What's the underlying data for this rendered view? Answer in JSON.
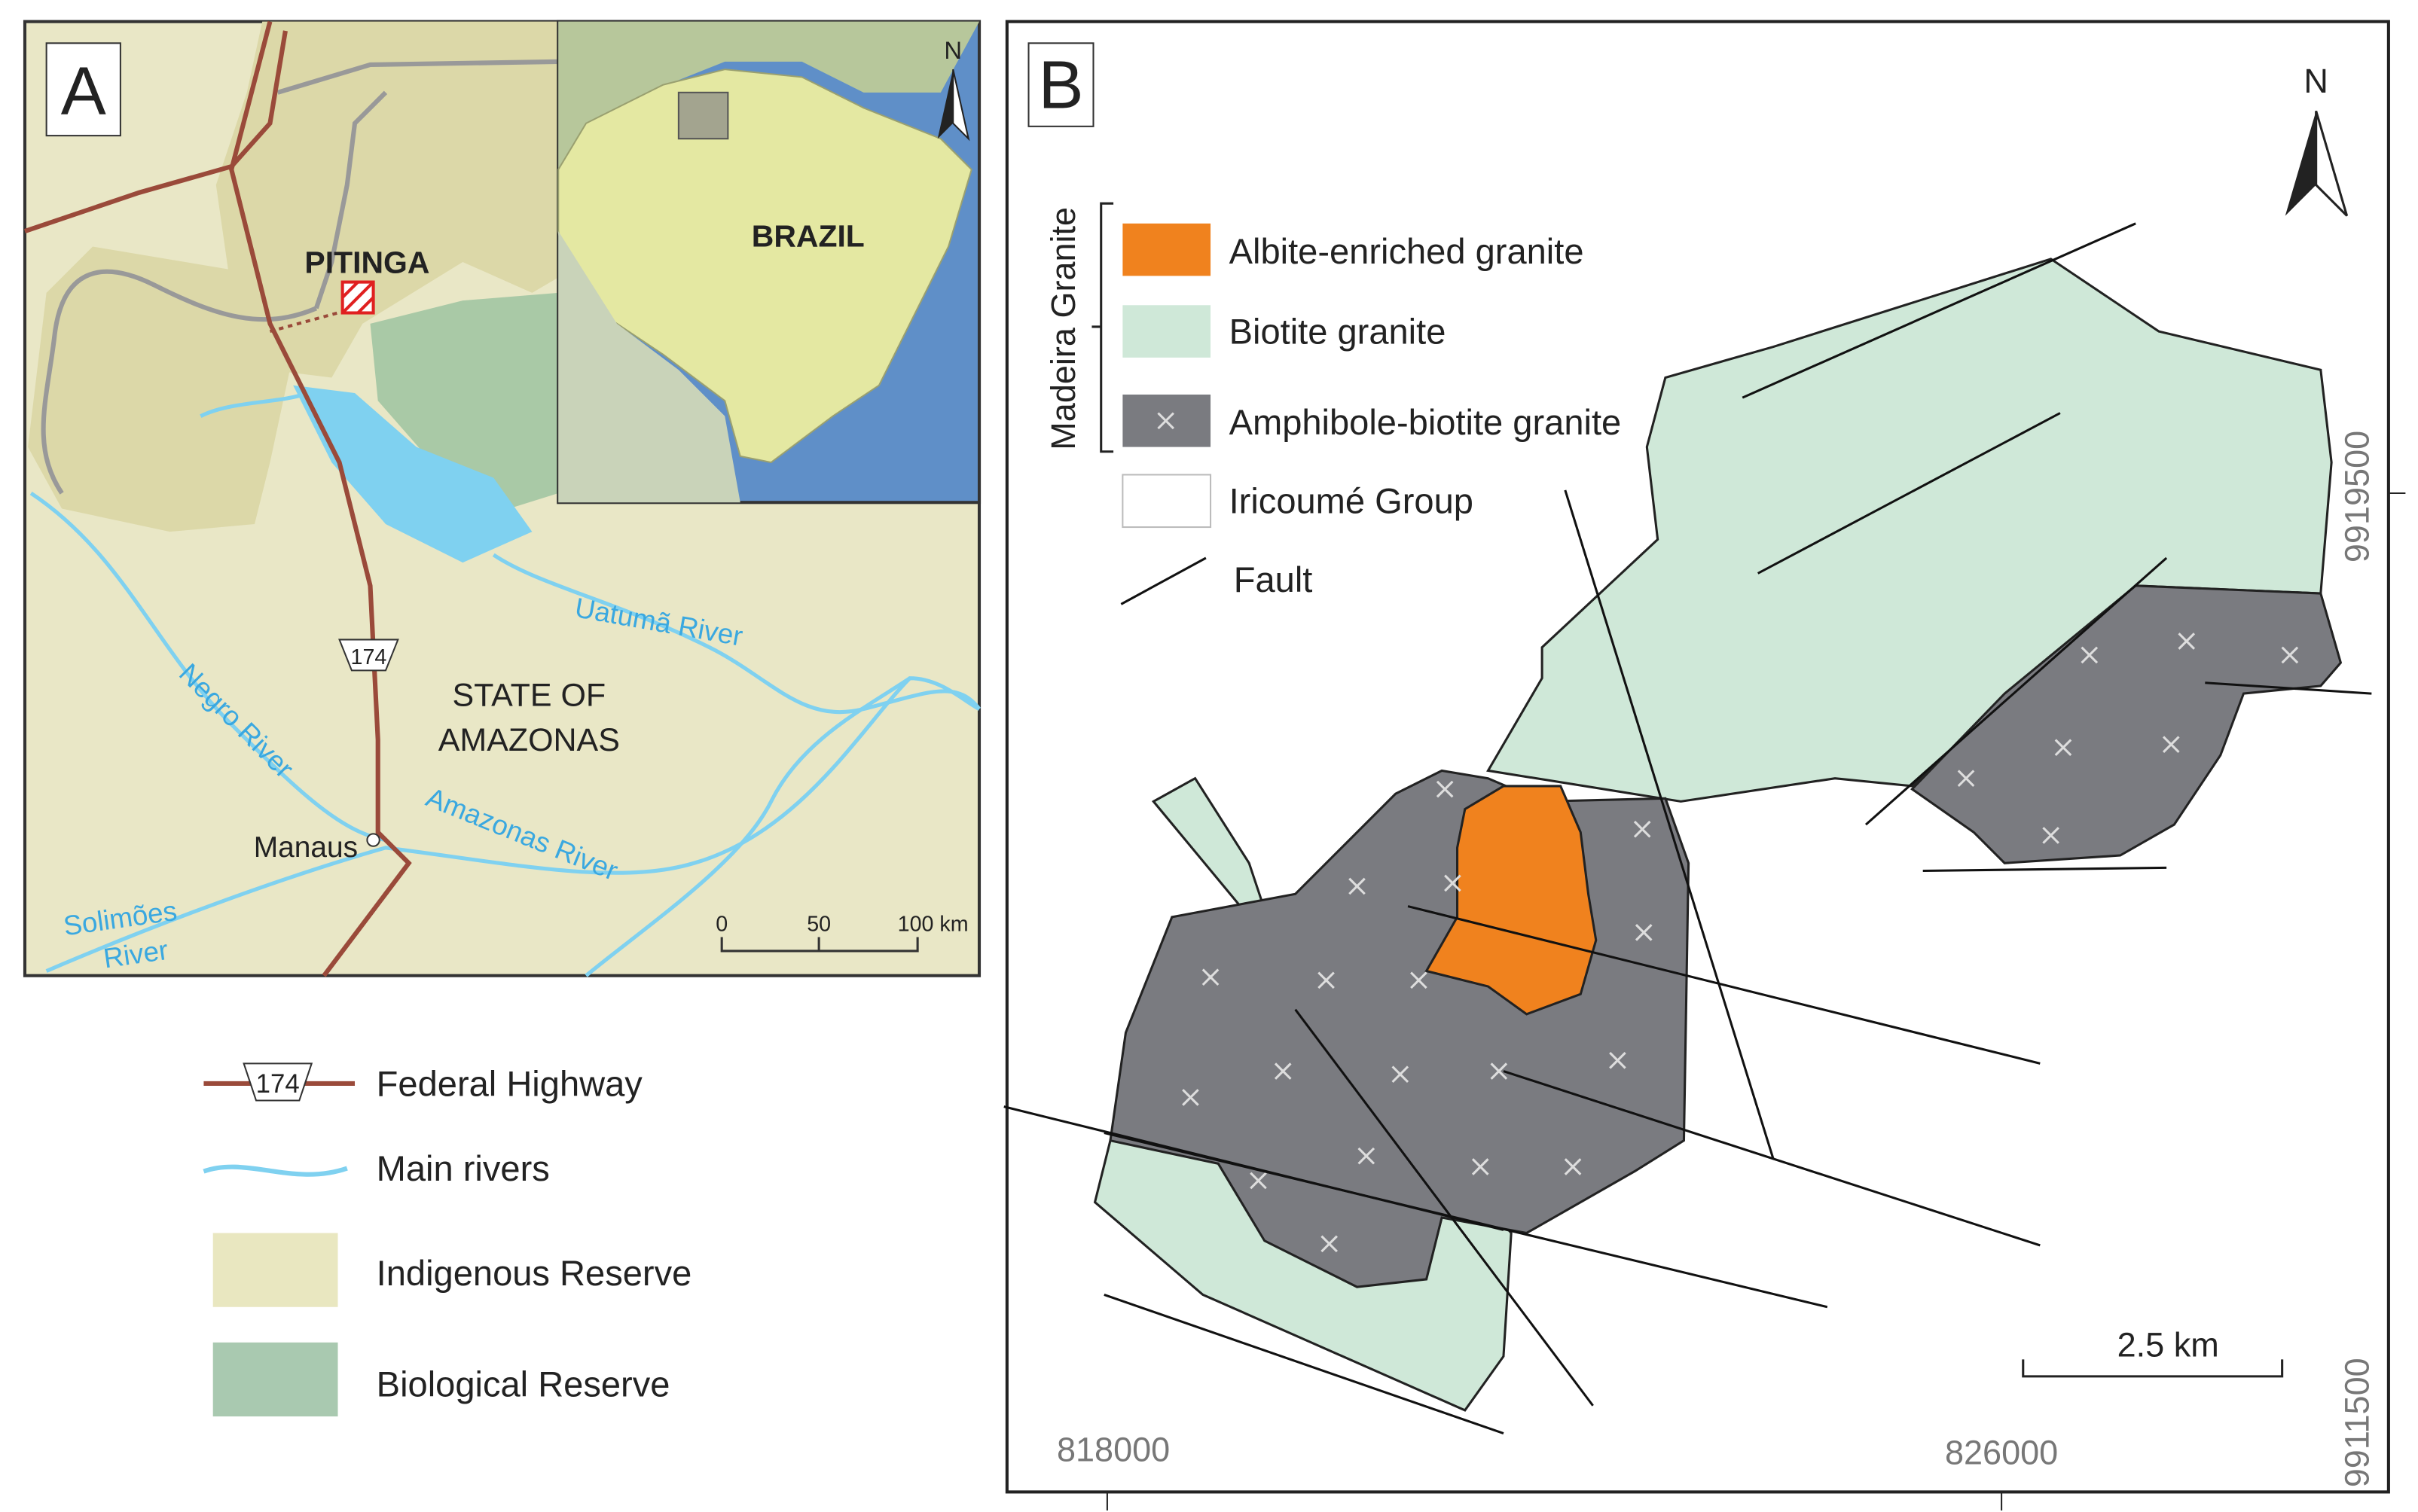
{
  "panel_a": {
    "label": "A",
    "north": "N",
    "inset_label": "BRAZIL",
    "site": "PITINGA",
    "highway_number": "174",
    "state": [
      "STATE OF",
      "AMAZONAS"
    ],
    "city": "Manaus",
    "rivers": [
      "Uatumã River",
      "Negro River",
      "Amazonas River",
      "Solimões",
      "River"
    ],
    "scale": [
      "0",
      "50",
      "100 km"
    ]
  },
  "legend_a": {
    "highway_number": "174",
    "items": [
      "Federal Highway",
      "Main rivers",
      "Indigenous Reserve",
      "Biological Reserve"
    ]
  },
  "panel_b": {
    "label": "B",
    "north": "N",
    "group_label": "Madeira Granite",
    "legend": [
      "Albite-enriched granite",
      "Biotite granite",
      "Amphibole-biotite granite",
      "Iricoumé Group",
      "Fault"
    ],
    "scale": "2.5 km",
    "x_coords": [
      "818000",
      "826000"
    ],
    "y_coords": [
      "9919500",
      "9911500"
    ]
  }
}
